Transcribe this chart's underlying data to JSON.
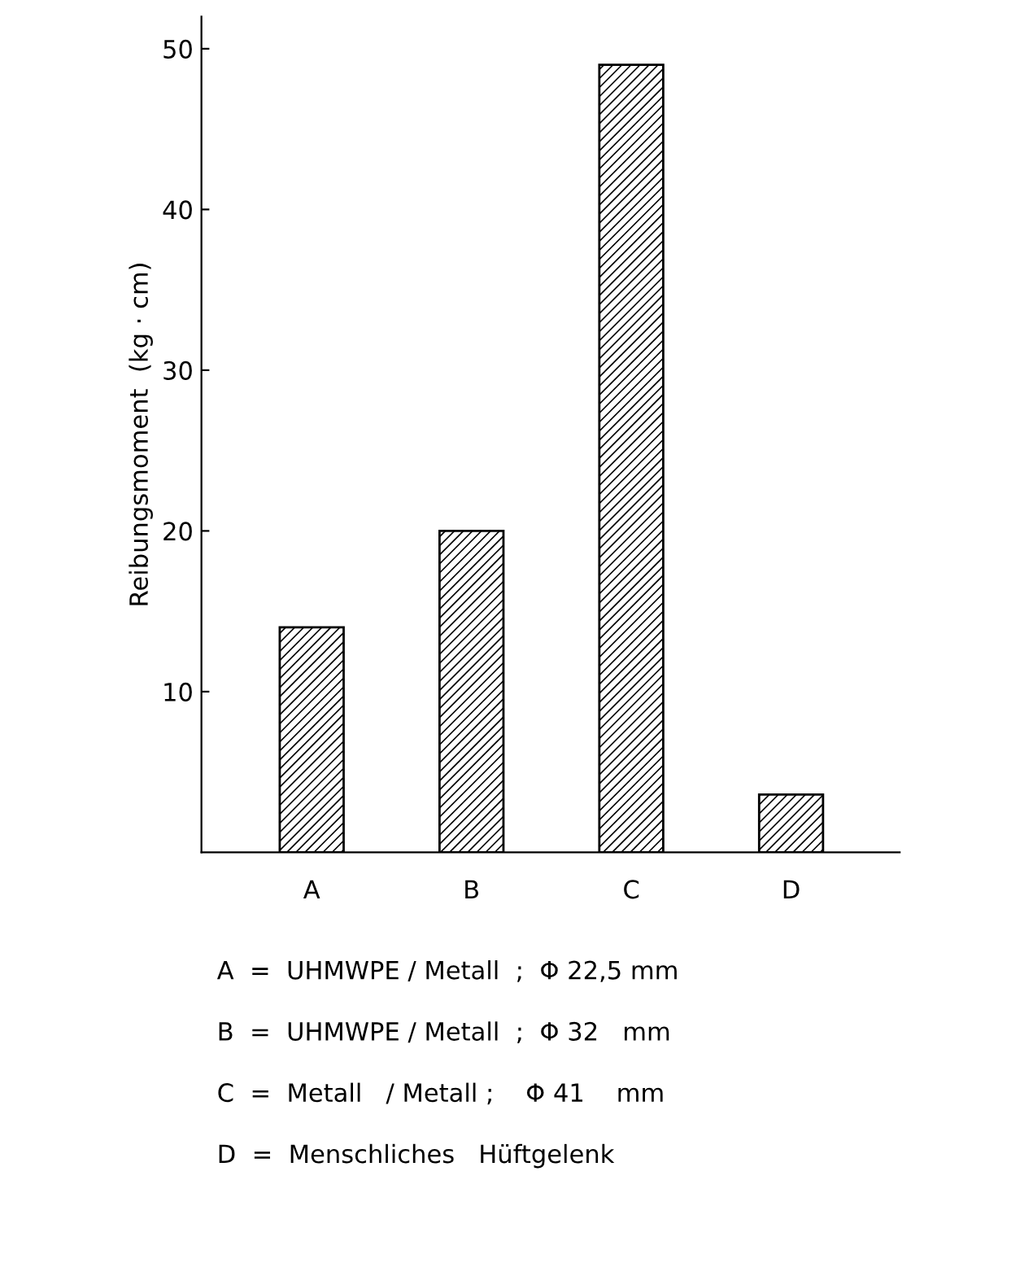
{
  "chart_data": {
    "type": "bar",
    "ylabel": "Reibungsmoment  (kg · cm)",
    "categories": [
      "A",
      "B",
      "C",
      "D"
    ],
    "values": [
      14,
      20,
      49,
      3.6
    ],
    "color": "#000000",
    "ylim": [
      0,
      52
    ],
    "yticks": [
      10,
      20,
      30,
      40,
      50
    ],
    "grid": false,
    "legend": false,
    "annotations": [
      "A  =  UHMWPE / Metall  ;  Φ 22,5 mm",
      "B  =  UHMWPE / Metall  ;  Φ 32   mm",
      "C  =  Metall   / Metall ;    Φ 41    mm",
      "D  =  Menschliches   Hüftgelenk"
    ]
  }
}
